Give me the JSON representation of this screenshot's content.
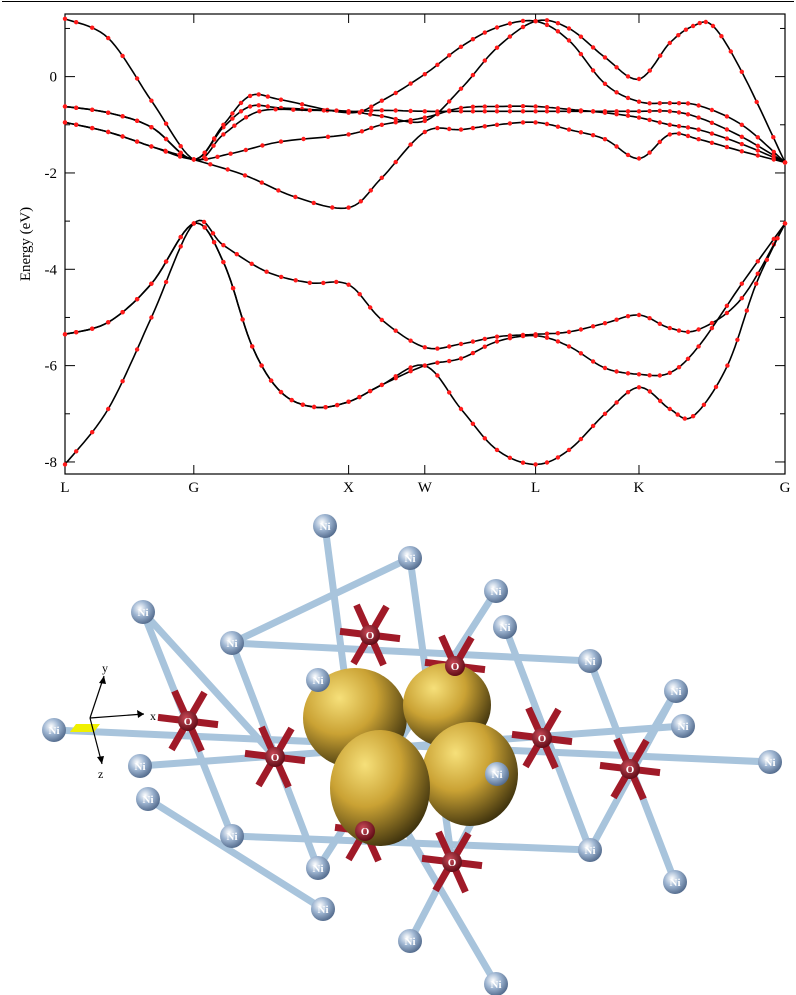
{
  "chart_data": {
    "type": "line",
    "title": "",
    "xlabel": "",
    "ylabel": "Energy (eV)",
    "ylim": [
      -8.25,
      1.3
    ],
    "yticks": [
      0,
      -2,
      -4,
      -6,
      -8
    ],
    "ytick_labels": [
      "0",
      "-2",
      "-4",
      "-6",
      "-8"
    ],
    "x_points": [
      {
        "label": "L",
        "k": 0.0
      },
      {
        "label": "G",
        "k": 0.1789
      },
      {
        "label": "X",
        "k": 0.3939
      },
      {
        "label": "W",
        "k": 0.4997
      },
      {
        "label": "L",
        "k": 0.6536
      },
      {
        "label": "K",
        "k": 0.7972
      },
      {
        "label": "G",
        "k": 1.0
      }
    ],
    "grid": false,
    "legend": "none",
    "line_color": "#000000",
    "marker_color": "#ff1a1a",
    "series": [
      {
        "points": [
          [
            0,
            -8.05
          ],
          [
            0.06,
            -6.9
          ],
          [
            0.12,
            -5.0
          ],
          [
            0.1789,
            -3.05
          ],
          [
            0.22,
            -3.5
          ],
          [
            0.28,
            -4.05
          ],
          [
            0.34,
            -4.28
          ],
          [
            0.3939,
            -4.32
          ],
          [
            0.44,
            -5.05
          ],
          [
            0.4997,
            -5.62
          ],
          [
            0.55,
            -5.55
          ],
          [
            0.6,
            -5.4
          ],
          [
            0.6536,
            -5.35
          ],
          [
            0.7,
            -5.3
          ],
          [
            0.75,
            -5.12
          ],
          [
            0.7972,
            -4.95
          ],
          [
            0.84,
            -5.22
          ],
          [
            0.88,
            -5.25
          ],
          [
            0.94,
            -4.6
          ],
          [
            1.0,
            -3.05
          ]
        ]
      },
      {
        "points": [
          [
            0,
            -5.35
          ],
          [
            0.06,
            -5.1
          ],
          [
            0.12,
            -4.3
          ],
          [
            0.1789,
            -3.05
          ],
          [
            0.22,
            -3.85
          ],
          [
            0.26,
            -5.6
          ],
          [
            0.3,
            -6.55
          ],
          [
            0.346,
            -6.86
          ],
          [
            0.3939,
            -6.75
          ],
          [
            0.44,
            -6.4
          ],
          [
            0.4997,
            -6.0
          ],
          [
            0.55,
            -5.85
          ],
          [
            0.6,
            -5.5
          ],
          [
            0.6536,
            -5.38
          ],
          [
            0.7,
            -5.6
          ],
          [
            0.75,
            -6.05
          ],
          [
            0.7972,
            -6.18
          ],
          [
            0.84,
            -6.15
          ],
          [
            0.88,
            -5.6
          ],
          [
            0.94,
            -4.3
          ],
          [
            1.0,
            -3.05
          ]
        ]
      },
      {
        "points": [
          [
            0,
            -5.35
          ],
          [
            0.06,
            -5.1
          ],
          [
            0.12,
            -4.3
          ],
          [
            0.1789,
            -3.05
          ],
          [
            0.22,
            -3.85
          ],
          [
            0.26,
            -5.6
          ],
          [
            0.3,
            -6.55
          ],
          [
            0.346,
            -6.86
          ],
          [
            0.3939,
            -6.75
          ],
          [
            0.44,
            -6.4
          ],
          [
            0.4997,
            -6.0
          ],
          [
            0.55,
            -6.9
          ],
          [
            0.6,
            -7.75
          ],
          [
            0.6536,
            -8.05
          ],
          [
            0.7,
            -7.75
          ],
          [
            0.75,
            -7.0
          ],
          [
            0.7972,
            -6.45
          ],
          [
            0.84,
            -6.9
          ],
          [
            0.8724,
            -7.05
          ],
          [
            0.92,
            -6.0
          ],
          [
            0.96,
            -4.3
          ],
          [
            1.0,
            -3.05
          ]
        ]
      },
      {
        "points": [
          [
            0,
            -0.95
          ],
          [
            0.06,
            -1.15
          ],
          [
            0.12,
            -1.45
          ],
          [
            0.1789,
            -1.72
          ],
          [
            0.25,
            -2.05
          ],
          [
            0.32,
            -2.5
          ],
          [
            0.3939,
            -2.72
          ],
          [
            0.44,
            -2.1
          ],
          [
            0.4997,
            -1.15
          ],
          [
            0.55,
            -1.1
          ],
          [
            0.6,
            -1.0
          ],
          [
            0.6536,
            -0.95
          ],
          [
            0.7,
            -1.1
          ],
          [
            0.75,
            -1.3
          ],
          [
            0.7972,
            -1.7
          ],
          [
            0.84,
            -1.2
          ],
          [
            0.88,
            -1.3
          ],
          [
            0.94,
            -1.55
          ],
          [
            1.0,
            -1.78
          ]
        ]
      },
      {
        "points": [
          [
            0,
            -0.95
          ],
          [
            0.06,
            -1.15
          ],
          [
            0.12,
            -1.45
          ],
          [
            0.1789,
            -1.72
          ],
          [
            0.23,
            -1.6
          ],
          [
            0.3,
            -1.35
          ],
          [
            0.3939,
            -1.2
          ],
          [
            0.44,
            -1.0
          ],
          [
            0.4997,
            -0.85
          ],
          [
            0.55,
            -0.65
          ],
          [
            0.6,
            -0.62
          ],
          [
            0.6536,
            -0.62
          ],
          [
            0.7,
            -0.68
          ],
          [
            0.75,
            -0.75
          ],
          [
            0.7972,
            -0.85
          ],
          [
            0.84,
            -1.0
          ],
          [
            0.88,
            -1.1
          ],
          [
            0.94,
            -1.4
          ],
          [
            1.0,
            -1.78
          ]
        ]
      },
      {
        "points": [
          [
            0,
            -0.62
          ],
          [
            0.06,
            -0.75
          ],
          [
            0.12,
            -1.05
          ],
          [
            0.1789,
            -1.72
          ],
          [
            0.22,
            -1.05
          ],
          [
            0.2571,
            -0.62
          ],
          [
            0.3,
            -0.65
          ],
          [
            0.3939,
            -0.72
          ],
          [
            0.44,
            -0.7
          ],
          [
            0.4997,
            -0.72
          ],
          [
            0.55,
            -0.72
          ],
          [
            0.6,
            -0.72
          ],
          [
            0.6536,
            -0.72
          ],
          [
            0.7,
            -0.72
          ],
          [
            0.75,
            -0.72
          ],
          [
            0.7972,
            -0.72
          ],
          [
            0.84,
            -0.72
          ],
          [
            0.88,
            -0.85
          ],
          [
            0.94,
            -1.25
          ],
          [
            1.0,
            -1.78
          ]
        ]
      },
      {
        "points": [
          [
            0,
            -0.62
          ],
          [
            0.06,
            -0.75
          ],
          [
            0.12,
            -1.05
          ],
          [
            0.1789,
            -1.72
          ],
          [
            0.22,
            -1.0
          ],
          [
            0.2571,
            -0.4
          ],
          [
            0.3,
            -0.48
          ],
          [
            0.3939,
            -0.75
          ],
          [
            0.44,
            -0.5
          ],
          [
            0.4997,
            0.05
          ],
          [
            0.55,
            0.62
          ],
          [
            0.6,
            1.02
          ],
          [
            0.6536,
            1.15
          ],
          [
            0.7,
            0.75
          ],
          [
            0.75,
            -0.15
          ],
          [
            0.7972,
            -0.52
          ],
          [
            0.84,
            -0.55
          ],
          [
            0.88,
            -0.6
          ],
          [
            0.94,
            -1.0
          ],
          [
            1.0,
            -1.78
          ]
        ]
      },
      {
        "points": [
          [
            0,
            1.2
          ],
          [
            0.06,
            0.8
          ],
          [
            0.12,
            -0.5
          ],
          [
            0.1789,
            -1.72
          ],
          [
            0.22,
            -1.2
          ],
          [
            0.27,
            -0.72
          ],
          [
            0.34,
            -0.7
          ],
          [
            0.3939,
            -0.72
          ],
          [
            0.44,
            -0.82
          ],
          [
            0.4997,
            -0.92
          ],
          [
            0.55,
            -0.25
          ],
          [
            0.6,
            0.6
          ],
          [
            0.6536,
            1.15
          ],
          [
            0.7,
            1.0
          ],
          [
            0.75,
            0.4
          ],
          [
            0.7972,
            -0.05
          ],
          [
            0.84,
            0.7
          ],
          [
            0.8724,
            1.05
          ],
          [
            0.9,
            1.05
          ],
          [
            0.94,
            0.1
          ],
          [
            1.0,
            -1.78
          ]
        ]
      }
    ]
  },
  "structure": {
    "atom_ni_label": "Ni",
    "atom_o_label": "O",
    "axes": {
      "x_label": "x",
      "y_label": "y",
      "z_label": "z"
    },
    "colors": {
      "ni": "#8fa8c8",
      "o": "#8c1020",
      "bond_ni": "#a8c4dc",
      "bond_o": "#a01a28",
      "orbital": "#c8a030",
      "axis_plane": "#f0f000"
    }
  }
}
